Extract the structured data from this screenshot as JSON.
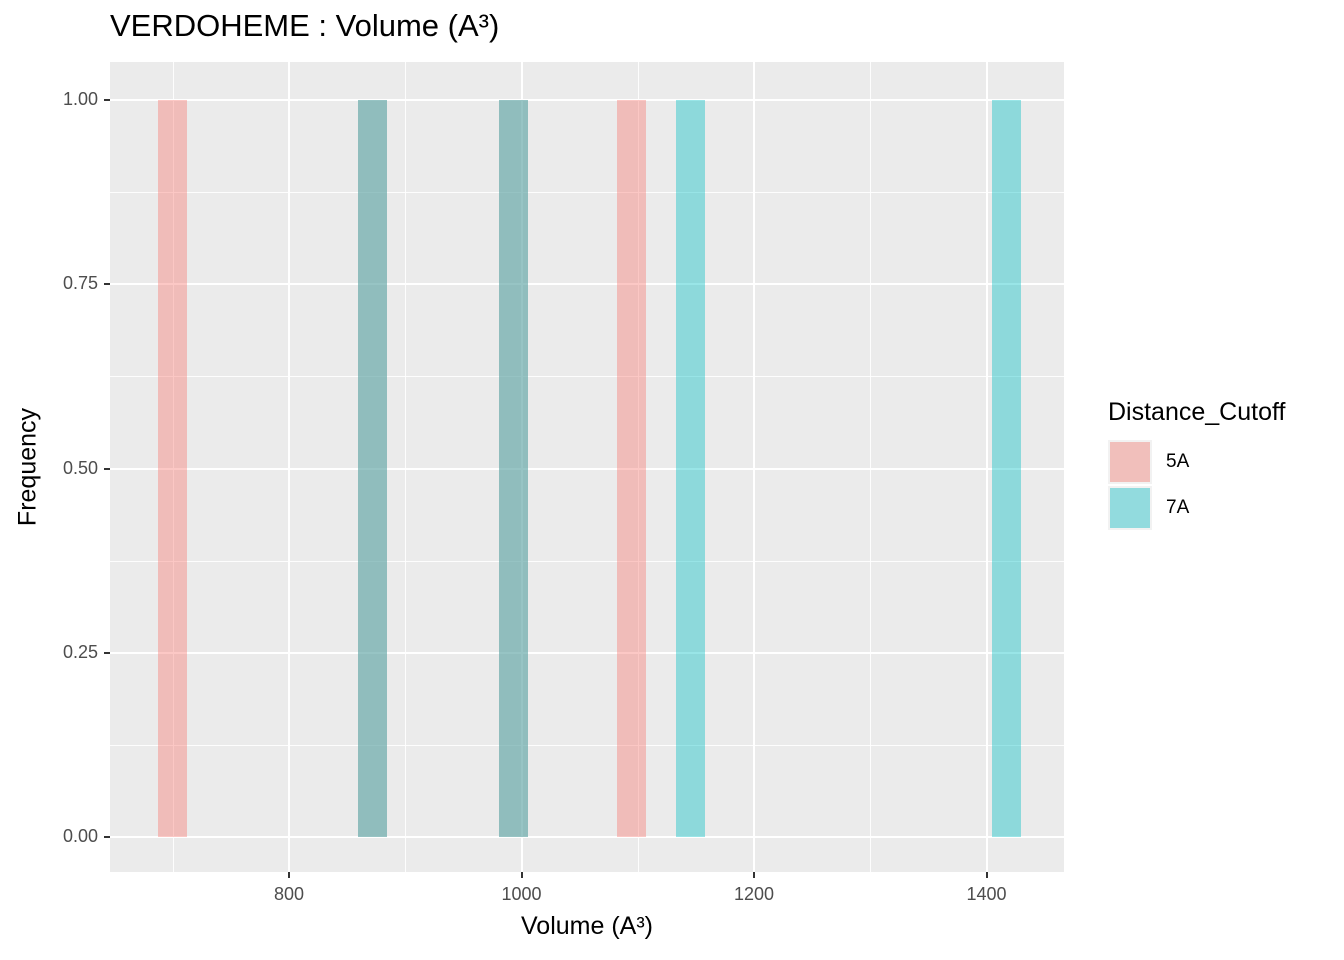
{
  "chart_data": {
    "type": "bar",
    "subtype": "histogram",
    "title": "VERDOHEME : Volume (A³)",
    "xlabel": "Volume (A³)",
    "ylabel": "Frequency",
    "xlim": [
      648,
      1469
    ],
    "ylim": [
      -0.05,
      1.05
    ],
    "x_ticks": [
      800,
      1000,
      1200,
      1400
    ],
    "x_tick_labels": [
      "800",
      "1000",
      "1200",
      "1400"
    ],
    "y_ticks": [
      0,
      0.25,
      0.5,
      0.75,
      1.0
    ],
    "y_tick_labels": [
      "0.00",
      "0.25",
      "0.50",
      "0.75",
      "1.00"
    ],
    "bin_width": 25,
    "grid": true,
    "legend_position": "right",
    "legend_title": "Distance_Cutoff",
    "series": [
      {
        "name": "5A",
        "color": "#F8766D",
        "alpha": 0.4,
        "bins": [
          {
            "x": 700,
            "count": 1
          },
          {
            "x": 872,
            "count": 1
          },
          {
            "x": 993,
            "count": 1
          },
          {
            "x": 1095,
            "count": 1
          }
        ]
      },
      {
        "name": "7A",
        "color": "#00BFC4",
        "alpha": 0.4,
        "bins": [
          {
            "x": 872,
            "count": 1
          },
          {
            "x": 993,
            "count": 1
          },
          {
            "x": 1145,
            "count": 1
          },
          {
            "x": 1417,
            "count": 1
          }
        ]
      }
    ]
  },
  "legend": {
    "title": "Distance_Cutoff",
    "items": [
      {
        "label": "5A",
        "color": "#F1BFBB"
      },
      {
        "label": "7A",
        "color": "#92DBDE"
      }
    ]
  },
  "colors": {
    "panel_bg": "#EBEBEB",
    "grid": "#FFFFFF",
    "bar_5A": "#F1BFBB",
    "bar_7A": "#92DBDE",
    "bar_overlap": "#92BCBA"
  }
}
